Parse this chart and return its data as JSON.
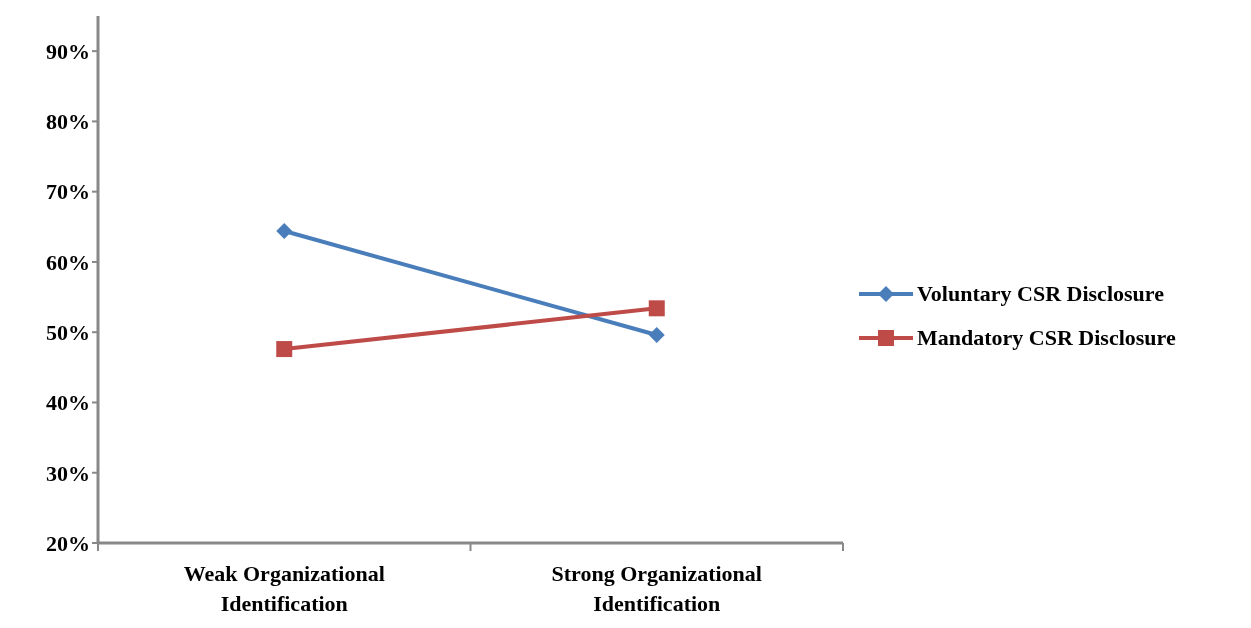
{
  "chart_data": {
    "type": "line",
    "categories": [
      "Weak Organizational Identification",
      "Strong Organizational Identification"
    ],
    "series": [
      {
        "name": "Voluntary CSR Disclosure",
        "color": "#4a7ebb",
        "values": [
          64.4,
          49.6
        ],
        "marker": "diamond"
      },
      {
        "name": "Mandatory CSR Disclosure",
        "color": "#be4b48",
        "values": [
          47.6,
          53.4
        ],
        "marker": "square"
      }
    ],
    "ylim": [
      20,
      95
    ],
    "yticks": [
      {
        "value": 20,
        "label": "20%"
      },
      {
        "value": 30,
        "label": "30%"
      },
      {
        "value": 40,
        "label": "40%"
      },
      {
        "value": 50,
        "label": "50%"
      },
      {
        "value": 60,
        "label": "60%"
      },
      {
        "value": 70,
        "label": "70%"
      },
      {
        "value": 80,
        "label": "80%"
      },
      {
        "value": 90,
        "label": "90%"
      }
    ],
    "grid": false,
    "legend": "right",
    "line_style": "solid"
  }
}
